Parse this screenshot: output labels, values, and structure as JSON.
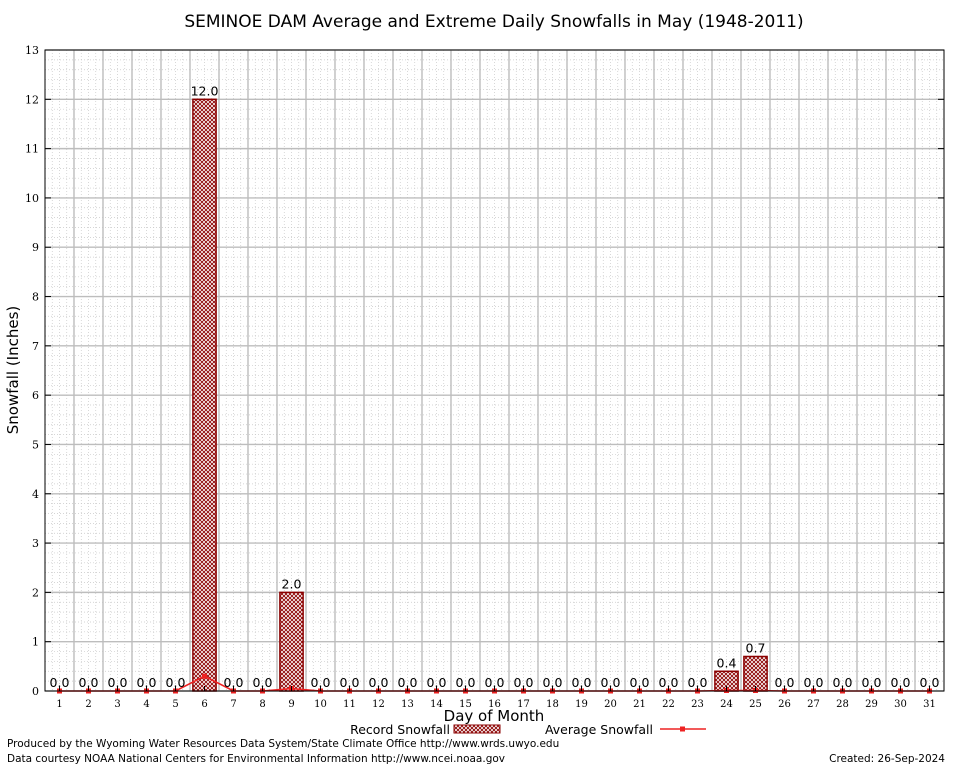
{
  "chart_data": {
    "type": "bar",
    "title": "SEMINOE DAM Average and Extreme Daily Snowfalls in May (1948-2011)",
    "xlabel": "Day of Month",
    "ylabel": "Snowfall (Inches)",
    "ylim": [
      0,
      13
    ],
    "yticks": [
      "0",
      "1",
      "2",
      "3",
      "4",
      "5",
      "6",
      "7",
      "8",
      "9",
      "10",
      "11",
      "12",
      "13"
    ],
    "categories": [
      "1",
      "2",
      "3",
      "4",
      "5",
      "6",
      "7",
      "8",
      "9",
      "10",
      "11",
      "12",
      "13",
      "14",
      "15",
      "16",
      "17",
      "18",
      "19",
      "20",
      "21",
      "22",
      "23",
      "24",
      "25",
      "26",
      "27",
      "28",
      "29",
      "30",
      "31"
    ],
    "grid": true,
    "legend_position": "bottom-center",
    "series": [
      {
        "name": "Record Snowfall",
        "kind": "bar",
        "color": "#8b0000",
        "values": [
          0,
          0,
          0,
          0,
          0,
          12,
          0,
          0,
          2,
          0,
          0,
          0,
          0,
          0,
          0,
          0,
          0,
          0,
          0,
          0,
          0,
          0,
          0,
          0.4,
          0.7,
          0,
          0,
          0,
          0,
          0,
          0
        ],
        "labels": [
          "0.0",
          "0.0",
          "0.0",
          "0.0",
          "0.0",
          "12.0",
          "0.0",
          "0.0",
          "2.0",
          "0.0",
          "0.0",
          "0.0",
          "0.0",
          "0.0",
          "0.0",
          "0.0",
          "0.0",
          "0.0",
          "0.0",
          "0.0",
          "0.0",
          "0.0",
          "0.0",
          "0.4",
          "0.7",
          "0.0",
          "0.0",
          "0.0",
          "0.0",
          "0.0",
          "0.0"
        ]
      },
      {
        "name": "Average Snowfall",
        "kind": "line",
        "color": "#ee2222",
        "values": [
          0,
          0,
          0,
          0,
          0,
          0.3,
          0,
          0,
          0.05,
          0,
          0,
          0,
          0,
          0,
          0,
          0,
          0,
          0,
          0,
          0,
          0,
          0,
          0,
          0.01,
          0.01,
          0,
          0,
          0,
          0,
          0,
          0
        ]
      }
    ]
  },
  "footer": {
    "produced_by": "Produced by the Wyoming Water Resources Data System/State Climate Office http://www.wrds.uwyo.edu",
    "courtesy": "Data courtesy NOAA National Centers for Environmental Information http://www.ncei.noaa.gov",
    "created": "Created:  26-Sep-2024"
  }
}
